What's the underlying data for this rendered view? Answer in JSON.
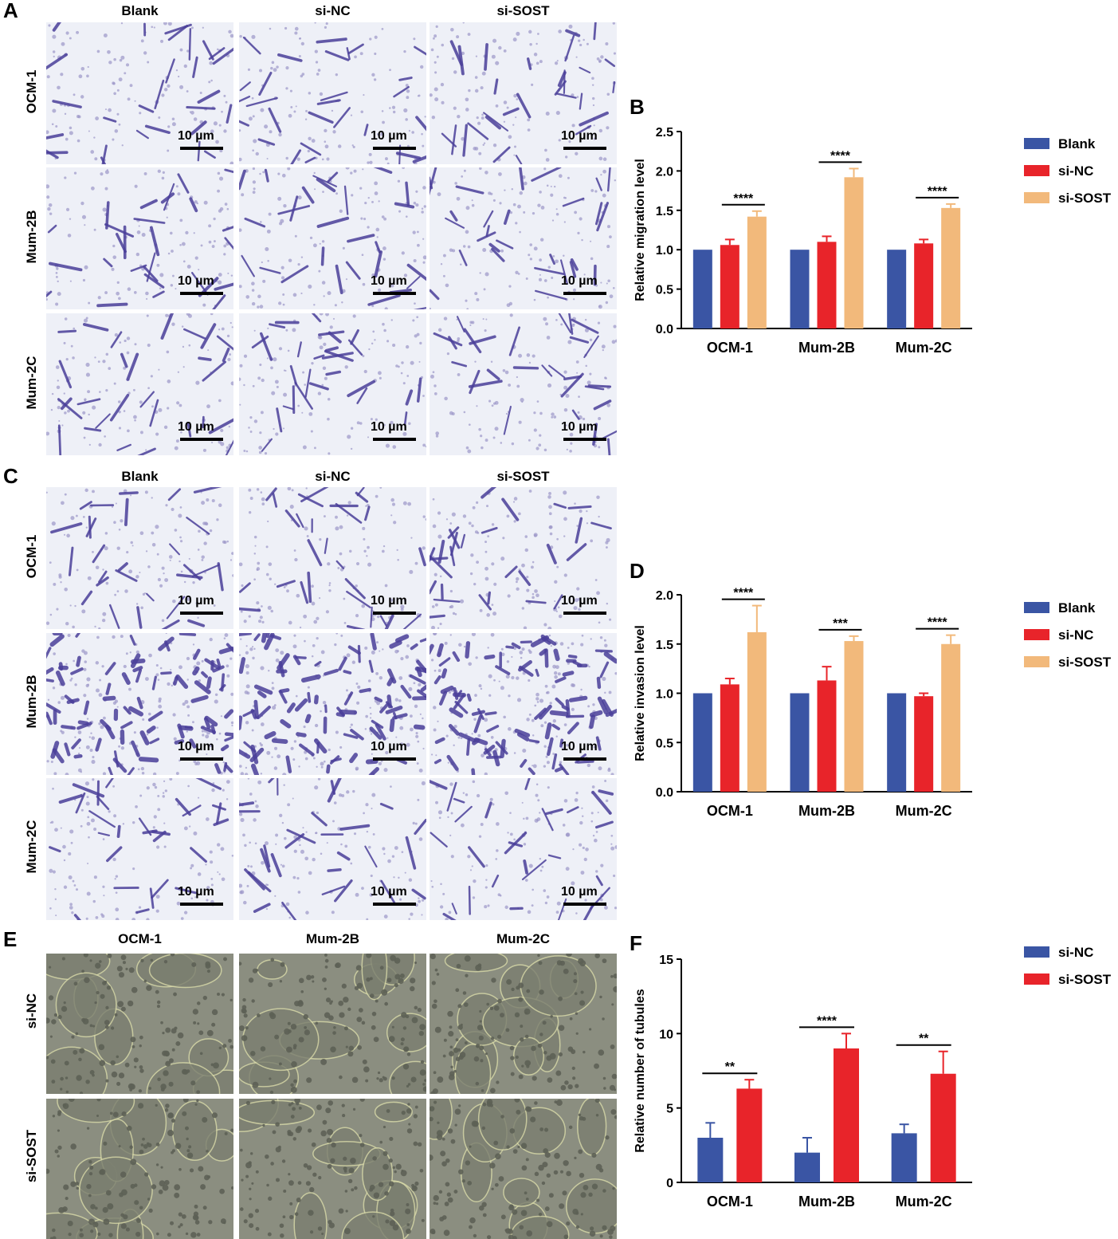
{
  "panels": {
    "A": {
      "letter": "A",
      "columns": [
        "Blank",
        "si-NC",
        "si-SOST"
      ],
      "rows": [
        "OCM-1",
        "Mum-2B",
        "Mum-2C"
      ],
      "scale_label": "10 µm"
    },
    "C": {
      "letter": "C",
      "columns": [
        "Blank",
        "si-NC",
        "si-SOST"
      ],
      "rows": [
        "OCM-1",
        "Mum-2B",
        "Mum-2C"
      ],
      "scale_label": "10 µm"
    },
    "E": {
      "letter": "E",
      "columns": [
        "OCM-1",
        "Mum-2B",
        "Mum-2C"
      ],
      "rows": [
        "si-NC",
        "si-SOST"
      ]
    }
  },
  "colors": {
    "blank": "#3a55a4",
    "si_nc": "#e8242a",
    "si_sost": "#f2b97b",
    "stain_bg": "#eef0f7",
    "stain_cell": "#4a3f9a",
    "phase_bg": "#8b8e80",
    "phase_cell": "#5d6155"
  },
  "chart_data": [
    {
      "panel": "B",
      "type": "bar",
      "categories": [
        "OCM-1",
        "Mum-2B",
        "Mum-2C"
      ],
      "series": [
        {
          "name": "Blank",
          "values": [
            1.0,
            1.0,
            1.0
          ],
          "errors": [
            0,
            0,
            0
          ]
        },
        {
          "name": "si-NC",
          "values": [
            1.06,
            1.1,
            1.08
          ],
          "errors": [
            0.07,
            0.07,
            0.05
          ]
        },
        {
          "name": "si-SOST",
          "values": [
            1.42,
            1.92,
            1.53
          ],
          "errors": [
            0.07,
            0.11,
            0.05
          ]
        }
      ],
      "significance": [
        "****",
        "****",
        "****"
      ],
      "ylabel": "Relative migration level",
      "ylim": [
        0,
        2.5
      ],
      "yticks": [
        "0.0",
        "0.5",
        "1.0",
        "1.5",
        "2.0",
        "2.5"
      ],
      "legend": "right"
    },
    {
      "panel": "D",
      "type": "bar",
      "categories": [
        "OCM-1",
        "Mum-2B",
        "Mum-2C"
      ],
      "series": [
        {
          "name": "Blank",
          "values": [
            1.0,
            1.0,
            1.0
          ],
          "errors": [
            0,
            0,
            0
          ]
        },
        {
          "name": "si-NC",
          "values": [
            1.09,
            1.13,
            0.97
          ],
          "errors": [
            0.06,
            0.14,
            0.03
          ]
        },
        {
          "name": "si-SOST",
          "values": [
            1.62,
            1.53,
            1.5
          ],
          "errors": [
            0.27,
            0.05,
            0.09
          ]
        }
      ],
      "significance": [
        "****",
        "***",
        "****"
      ],
      "ylabel": "Relative invasion level",
      "ylim": [
        0,
        2.0
      ],
      "yticks": [
        "0.0",
        "0.5",
        "1.0",
        "1.5",
        "2.0"
      ],
      "legend": "right"
    },
    {
      "panel": "F",
      "type": "bar",
      "categories": [
        "OCM-1",
        "Mum-2B",
        "Mum-2C"
      ],
      "series": [
        {
          "name": "si-NC",
          "values": [
            3.0,
            2.0,
            3.3
          ],
          "errors": [
            1.0,
            1.0,
            0.6
          ]
        },
        {
          "name": "si-SOST",
          "values": [
            6.3,
            9.0,
            7.3
          ],
          "errors": [
            0.6,
            1.0,
            1.5
          ]
        }
      ],
      "significance": [
        "**",
        "****",
        "**"
      ],
      "ylabel": "Relative number of tubules",
      "ylim": [
        0,
        15
      ],
      "yticks": [
        "0",
        "5",
        "10",
        "15"
      ],
      "legend": "right"
    }
  ]
}
